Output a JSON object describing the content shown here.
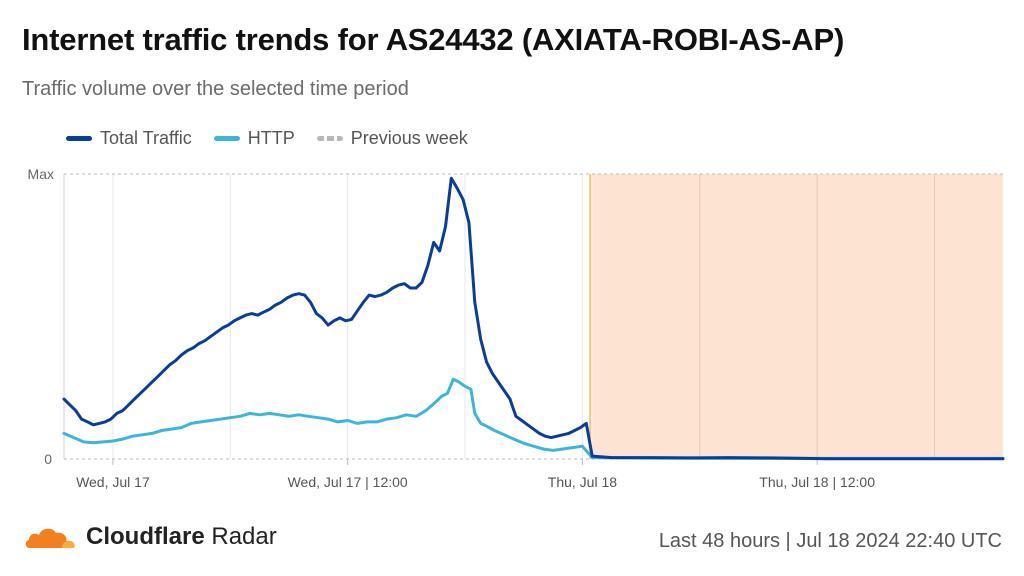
{
  "header": {
    "title": "Internet traffic trends for AS24432 (AXIATA-ROBI-AS-AP)",
    "subtitle": "Traffic volume over the selected time period"
  },
  "legend": [
    {
      "label": "Total Traffic",
      "color": "#0a3d99",
      "style": "solid"
    },
    {
      "label": "HTTP",
      "color": "#3ab5de",
      "style": "solid"
    },
    {
      "label": "Previous week",
      "color": "#b8b8b8",
      "style": "dashed"
    }
  ],
  "footer": {
    "brand_bold": "Cloudflare",
    "brand_regular": "Radar",
    "range": "Last 48 hours | Jul 18 2024 22:40 UTC",
    "logo_icon": "cloudflare-cloud-icon",
    "logo_color": "#f38020"
  },
  "chart_data": {
    "type": "line",
    "y_axis": {
      "ticks": [
        "Max",
        "0"
      ],
      "min": 0,
      "max": 1
    },
    "x_axis": {
      "range_hours": [
        0,
        48
      ],
      "tick_labels": [
        {
          "label": "Wed, Jul 17",
          "hour": 2.5
        },
        {
          "label": "Wed, Jul 17 | 12:00",
          "hour": 14.5
        },
        {
          "label": "Thu, Jul 18",
          "hour": 26.5
        },
        {
          "label": "Thu, Jul 18 | 12:00",
          "hour": 38.5
        }
      ],
      "gridline_hours": [
        2.5,
        8.5,
        14.5,
        20.5,
        26.5,
        32.5,
        38.5,
        44.5
      ]
    },
    "shaded_region": {
      "from_hour": 27.0,
      "to_hour": 48,
      "color": "#fde3d2"
    },
    "marker_line": {
      "hour": 26.9,
      "color": "#f6c56e"
    },
    "series": [
      {
        "name": "Total Traffic",
        "color": "#0a3d99",
        "points": [
          [
            0,
            0.21
          ],
          [
            0.3,
            0.19
          ],
          [
            0.6,
            0.17
          ],
          [
            0.9,
            0.14
          ],
          [
            1.2,
            0.13
          ],
          [
            1.5,
            0.12
          ],
          [
            1.8,
            0.125
          ],
          [
            2.1,
            0.13
          ],
          [
            2.4,
            0.14
          ],
          [
            2.7,
            0.16
          ],
          [
            3.0,
            0.17
          ],
          [
            3.3,
            0.19
          ],
          [
            3.6,
            0.21
          ],
          [
            3.9,
            0.23
          ],
          [
            4.2,
            0.25
          ],
          [
            4.5,
            0.27
          ],
          [
            4.8,
            0.29
          ],
          [
            5.1,
            0.31
          ],
          [
            5.4,
            0.33
          ],
          [
            5.7,
            0.345
          ],
          [
            6.0,
            0.365
          ],
          [
            6.3,
            0.38
          ],
          [
            6.6,
            0.39
          ],
          [
            6.9,
            0.405
          ],
          [
            7.2,
            0.415
          ],
          [
            7.5,
            0.43
          ],
          [
            7.8,
            0.445
          ],
          [
            8.1,
            0.46
          ],
          [
            8.4,
            0.47
          ],
          [
            8.7,
            0.485
          ],
          [
            9.0,
            0.495
          ],
          [
            9.3,
            0.505
          ],
          [
            9.6,
            0.51
          ],
          [
            9.9,
            0.505
          ],
          [
            10.2,
            0.515
          ],
          [
            10.5,
            0.525
          ],
          [
            10.8,
            0.54
          ],
          [
            11.1,
            0.55
          ],
          [
            11.4,
            0.565
          ],
          [
            11.7,
            0.575
          ],
          [
            12.0,
            0.58
          ],
          [
            12.3,
            0.575
          ],
          [
            12.6,
            0.55
          ],
          [
            12.9,
            0.51
          ],
          [
            13.2,
            0.495
          ],
          [
            13.5,
            0.47
          ],
          [
            13.8,
            0.485
          ],
          [
            14.1,
            0.495
          ],
          [
            14.4,
            0.485
          ],
          [
            14.7,
            0.49
          ],
          [
            15.0,
            0.52
          ],
          [
            15.3,
            0.55
          ],
          [
            15.6,
            0.575
          ],
          [
            15.9,
            0.57
          ],
          [
            16.2,
            0.575
          ],
          [
            16.5,
            0.585
          ],
          [
            16.8,
            0.6
          ],
          [
            17.1,
            0.61
          ],
          [
            17.4,
            0.615
          ],
          [
            17.7,
            0.6
          ],
          [
            18.0,
            0.6
          ],
          [
            18.3,
            0.62
          ],
          [
            18.6,
            0.68
          ],
          [
            18.9,
            0.76
          ],
          [
            19.2,
            0.73
          ],
          [
            19.5,
            0.815
          ],
          [
            19.8,
            0.985
          ],
          [
            20.1,
            0.95
          ],
          [
            20.4,
            0.91
          ],
          [
            20.7,
            0.83
          ],
          [
            21.0,
            0.55
          ],
          [
            21.3,
            0.42
          ],
          [
            21.6,
            0.34
          ],
          [
            21.9,
            0.3
          ],
          [
            22.2,
            0.27
          ],
          [
            22.5,
            0.24
          ],
          [
            22.8,
            0.21
          ],
          [
            23.1,
            0.15
          ],
          [
            23.4,
            0.135
          ],
          [
            23.7,
            0.12
          ],
          [
            24.0,
            0.105
          ],
          [
            24.3,
            0.09
          ],
          [
            24.6,
            0.08
          ],
          [
            24.9,
            0.075
          ],
          [
            25.2,
            0.08
          ],
          [
            25.5,
            0.085
          ],
          [
            25.8,
            0.09
          ],
          [
            26.1,
            0.1
          ],
          [
            26.4,
            0.11
          ],
          [
            26.7,
            0.125
          ],
          [
            27.0,
            0.01
          ],
          [
            28.0,
            0.005
          ],
          [
            30.0,
            0.005
          ],
          [
            32.0,
            0.004
          ],
          [
            34.0,
            0.005
          ],
          [
            36.0,
            0.004
          ],
          [
            37.0,
            0.003
          ],
          [
            39.0,
            0.001
          ],
          [
            42.0,
            0.001
          ],
          [
            45.0,
            0.001
          ],
          [
            48.0,
            0.001
          ]
        ]
      },
      {
        "name": "HTTP",
        "color": "#3ab5de",
        "points": [
          [
            0,
            0.09
          ],
          [
            0.5,
            0.075
          ],
          [
            1.0,
            0.06
          ],
          [
            1.5,
            0.057
          ],
          [
            2.0,
            0.06
          ],
          [
            2.5,
            0.063
          ],
          [
            3.0,
            0.07
          ],
          [
            3.5,
            0.08
          ],
          [
            4.0,
            0.085
          ],
          [
            4.5,
            0.09
          ],
          [
            5.0,
            0.1
          ],
          [
            5.5,
            0.105
          ],
          [
            6.0,
            0.11
          ],
          [
            6.5,
            0.125
          ],
          [
            7.0,
            0.13
          ],
          [
            7.5,
            0.135
          ],
          [
            8.0,
            0.14
          ],
          [
            8.5,
            0.145
          ],
          [
            9.0,
            0.15
          ],
          [
            9.5,
            0.16
          ],
          [
            10.0,
            0.155
          ],
          [
            10.5,
            0.16
          ],
          [
            11.0,
            0.155
          ],
          [
            11.5,
            0.15
          ],
          [
            12.0,
            0.155
          ],
          [
            12.5,
            0.15
          ],
          [
            13.0,
            0.145
          ],
          [
            13.5,
            0.14
          ],
          [
            14.0,
            0.13
          ],
          [
            14.5,
            0.135
          ],
          [
            15.0,
            0.125
          ],
          [
            15.5,
            0.13
          ],
          [
            16.0,
            0.13
          ],
          [
            16.5,
            0.14
          ],
          [
            17.0,
            0.145
          ],
          [
            17.5,
            0.155
          ],
          [
            18.0,
            0.15
          ],
          [
            18.5,
            0.17
          ],
          [
            19.0,
            0.2
          ],
          [
            19.3,
            0.22
          ],
          [
            19.6,
            0.23
          ],
          [
            19.9,
            0.28
          ],
          [
            20.2,
            0.27
          ],
          [
            20.5,
            0.255
          ],
          [
            20.8,
            0.245
          ],
          [
            21.0,
            0.16
          ],
          [
            21.3,
            0.125
          ],
          [
            21.6,
            0.115
          ],
          [
            22.0,
            0.1
          ],
          [
            22.5,
            0.085
          ],
          [
            23.0,
            0.07
          ],
          [
            23.5,
            0.055
          ],
          [
            24.0,
            0.045
          ],
          [
            24.5,
            0.035
          ],
          [
            25.0,
            0.03
          ],
          [
            25.5,
            0.035
          ],
          [
            26.0,
            0.04
          ],
          [
            26.5,
            0.045
          ],
          [
            27.0,
            0.005
          ],
          [
            30.0,
            0.003
          ],
          [
            34.0,
            0.002
          ],
          [
            38.0,
            0.002
          ],
          [
            42.0,
            0.002
          ],
          [
            48.0,
            0.002
          ]
        ]
      }
    ]
  }
}
